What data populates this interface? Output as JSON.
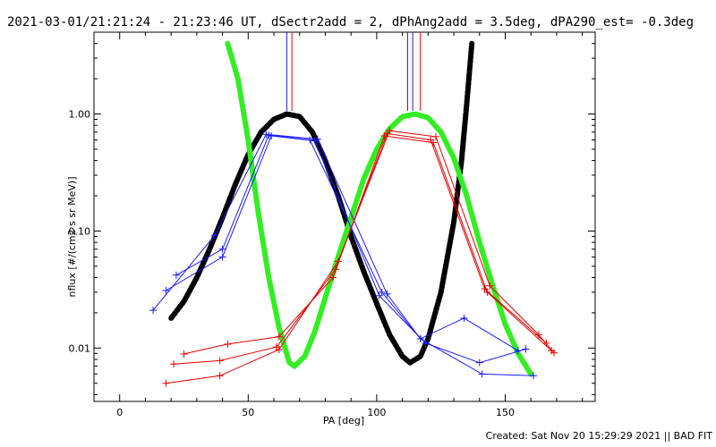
{
  "chart_data": {
    "type": "line",
    "title": "2021-03-01/21:21:24 - 21:23:46 UT, dSectr2add = 2, dPhAng2add = 3.5deg, dPA290_est= -0.3deg",
    "xlabel": "PA [deg]",
    "ylabel": "nflux [#/(cm2 s sr MeV)]",
    "xlim": [
      -10,
      185
    ],
    "ylim": [
      0.0035,
      5.0
    ],
    "yscale": "log",
    "x_ticks": [
      0,
      50,
      100,
      150
    ],
    "y_ticks": [
      {
        "value": 0.01,
        "label": "0.01"
      },
      {
        "value": 0.1,
        "label": "0.10"
      },
      {
        "value": 1.0,
        "label": "1.00"
      }
    ],
    "grid": false,
    "legend": "none",
    "colors": {
      "blue": "#1a1aff",
      "red": "#e60000",
      "black": "#000000",
      "green": "#33ee22",
      "darkred": "#800020"
    },
    "series": [
      {
        "color": "#1a1aff",
        "marker": "+",
        "points": [
          [
            13,
            0.021
          ],
          [
            37,
            0.092
          ],
          [
            57,
            0.67
          ],
          [
            77,
            0.61
          ],
          [
            104,
            0.029
          ],
          [
            117,
            0.012
          ],
          [
            134,
            0.018
          ],
          [
            155,
            0.0095
          ]
        ]
      },
      {
        "color": "#1a1aff",
        "marker": "+",
        "points": [
          [
            18,
            0.031
          ],
          [
            40,
            0.06
          ],
          [
            59,
            0.65
          ],
          [
            76,
            0.59
          ],
          [
            101,
            0.028
          ],
          [
            119,
            0.011
          ],
          [
            140,
            0.0075
          ],
          [
            158,
            0.0098
          ]
        ]
      },
      {
        "color": "#1a1aff",
        "marker": "+",
        "points": [
          [
            22,
            0.042
          ],
          [
            40,
            0.07
          ],
          [
            58,
            0.66
          ],
          [
            74,
            0.6
          ],
          [
            102,
            0.03
          ],
          [
            117,
            0.012
          ],
          [
            141,
            0.006
          ],
          [
            161,
            0.0058
          ]
        ]
      },
      {
        "color": "#e60000",
        "marker": "+",
        "points": [
          [
            18,
            0.005
          ],
          [
            39,
            0.0058
          ],
          [
            62,
            0.0097
          ],
          [
            85,
            0.055
          ],
          [
            105,
            0.72
          ],
          [
            123,
            0.64
          ],
          [
            144,
            0.034
          ],
          [
            163,
            0.013
          ],
          [
            169,
            0.0091
          ]
        ]
      },
      {
        "color": "#e60000",
        "marker": "+",
        "points": [
          [
            21,
            0.0073
          ],
          [
            39,
            0.0078
          ],
          [
            61,
            0.0102
          ],
          [
            84,
            0.047
          ],
          [
            104,
            0.68
          ],
          [
            121,
            0.6
          ],
          [
            142,
            0.032
          ],
          [
            166,
            0.011
          ]
        ]
      },
      {
        "color": "#e60000",
        "marker": "+",
        "points": [
          [
            25,
            0.0089
          ],
          [
            42,
            0.0108
          ],
          [
            62,
            0.0125
          ],
          [
            83,
            0.04
          ],
          [
            103,
            0.65
          ],
          [
            122,
            0.57
          ],
          [
            143,
            0.03
          ],
          [
            168,
            0.0095
          ]
        ]
      },
      {
        "color": "#000000",
        "style": "dotted-fit",
        "points": [
          [
            20,
            0.018
          ],
          [
            25,
            0.025
          ],
          [
            30,
            0.04
          ],
          [
            35,
            0.07
          ],
          [
            40,
            0.13
          ],
          [
            45,
            0.25
          ],
          [
            50,
            0.45
          ],
          [
            55,
            0.7
          ],
          [
            60,
            0.9
          ],
          [
            65,
            1.0
          ],
          [
            70,
            0.95
          ],
          [
            75,
            0.7
          ],
          [
            80,
            0.4
          ],
          [
            85,
            0.2
          ],
          [
            90,
            0.09
          ],
          [
            95,
            0.045
          ],
          [
            100,
            0.024
          ],
          [
            105,
            0.013
          ],
          [
            110,
            0.0085
          ],
          [
            113,
            0.0075
          ],
          [
            117,
            0.0085
          ],
          [
            120,
            0.012
          ],
          [
            125,
            0.03
          ],
          [
            130,
            0.12
          ],
          [
            133,
            0.4
          ],
          [
            135,
            1.2
          ],
          [
            137,
            4.0
          ]
        ]
      },
      {
        "color": "#33ee22",
        "style": "dotted-fit",
        "points": [
          [
            42,
            4.0
          ],
          [
            46,
            2.0
          ],
          [
            50,
            0.6
          ],
          [
            54,
            0.14
          ],
          [
            58,
            0.04
          ],
          [
            62,
            0.015
          ],
          [
            66,
            0.0075
          ],
          [
            68,
            0.007
          ],
          [
            72,
            0.0085
          ],
          [
            76,
            0.014
          ],
          [
            80,
            0.027
          ],
          [
            85,
            0.06
          ],
          [
            90,
            0.13
          ],
          [
            95,
            0.28
          ],
          [
            100,
            0.5
          ],
          [
            105,
            0.75
          ],
          [
            110,
            0.95
          ],
          [
            115,
            1.0
          ],
          [
            120,
            0.93
          ],
          [
            125,
            0.7
          ],
          [
            130,
            0.42
          ],
          [
            135,
            0.2
          ],
          [
            140,
            0.08
          ],
          [
            145,
            0.035
          ],
          [
            150,
            0.016
          ],
          [
            155,
            0.009
          ],
          [
            160,
            0.006
          ]
        ]
      }
    ],
    "peak_markers": [
      {
        "x": 65,
        "color": "#1a1aff"
      },
      {
        "x": 67,
        "color": "#e60000"
      },
      {
        "x": 112,
        "color": "#800020"
      },
      {
        "x": 114,
        "color": "#1a1aff"
      },
      {
        "x": 117,
        "color": "#e60000"
      }
    ]
  },
  "footer": "Created: Sat Nov 20 15:29:29 2021 || BAD FIT"
}
